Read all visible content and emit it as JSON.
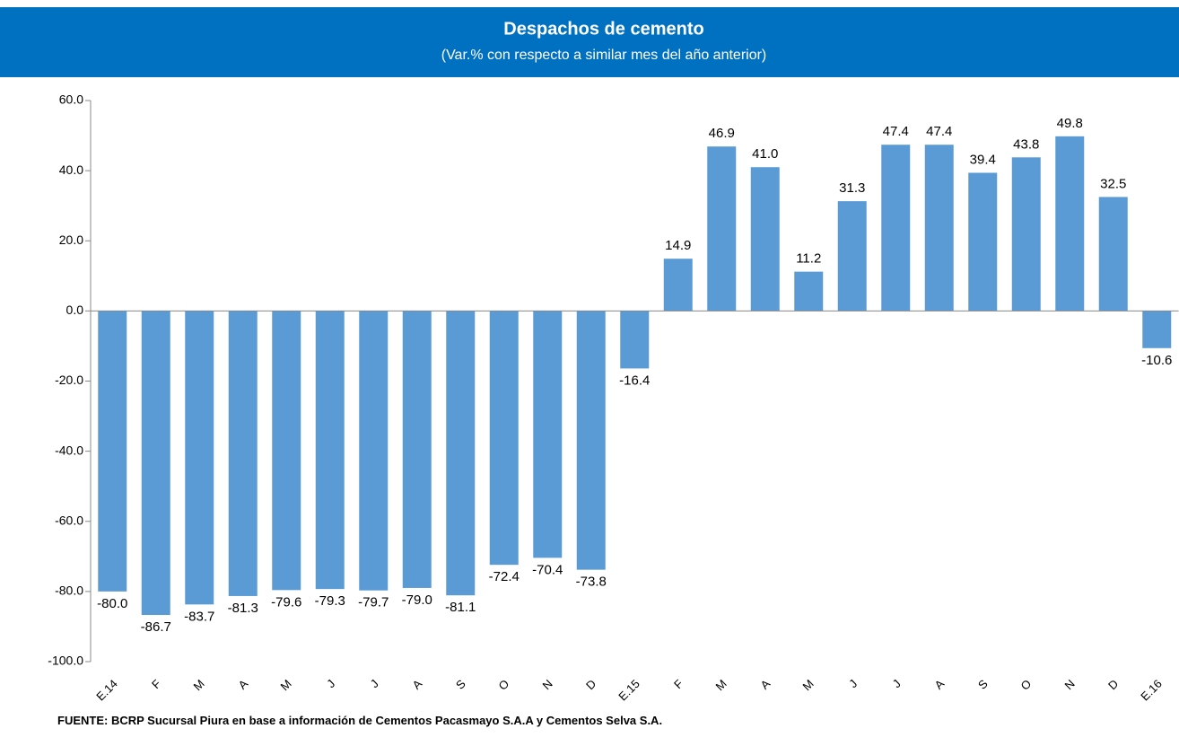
{
  "chart_data": {
    "type": "bar",
    "title": "Despachos de cemento",
    "subtitle": "(Var.% con respecto a similar mes del año anterior)",
    "categories": [
      "E.14",
      "F",
      "M",
      "A",
      "M",
      "J",
      "J",
      "A",
      "S",
      "O",
      "N",
      "D",
      "E.15",
      "F",
      "M",
      "A",
      "M",
      "J",
      "J",
      "A",
      "S",
      "O",
      "N",
      "D",
      "E.16"
    ],
    "values": [
      -80.0,
      -86.7,
      -83.7,
      -81.3,
      -79.6,
      -79.3,
      -79.7,
      -79.0,
      -81.1,
      -72.4,
      -70.4,
      -73.8,
      -16.4,
      14.9,
      46.9,
      41.0,
      11.2,
      31.3,
      47.4,
      47.4,
      39.4,
      43.8,
      49.8,
      32.5,
      -10.6
    ],
    "value_labels": [
      "-80.0",
      "-86.7",
      "-83.7",
      "-81.3",
      "-79.6",
      "-79.3",
      "-79.7",
      "-79.0",
      "-81.1",
      "-72.4",
      "-70.4",
      "-73.8",
      "-16.4",
      "14.9",
      "46.9",
      "41.0",
      "11.2",
      "31.3",
      "47.4",
      "47.4",
      "39.4",
      "43.8",
      "49.8",
      "32.5",
      "-10.6"
    ],
    "color": "#5b9bd5",
    "header_color": "#0070c0",
    "ylim": [
      -100,
      60
    ],
    "yticks": [
      {
        "value": -100,
        "label": "-100.0"
      },
      {
        "value": -80,
        "label": "-80.0"
      },
      {
        "value": -60,
        "label": "-60.0"
      },
      {
        "value": -40,
        "label": "-40.0"
      },
      {
        "value": -20,
        "label": "-20.0"
      },
      {
        "value": 0,
        "label": "0.0"
      },
      {
        "value": 20,
        "label": "20.0"
      },
      {
        "value": 40,
        "label": "40.0"
      },
      {
        "value": 60,
        "label": "60.0"
      }
    ],
    "grid": false,
    "source": "FUENTE:  BCRP  Sucursal Piura en base a información de Cementos Pacasmayo S.A.A y Cementos Selva S.A."
  }
}
